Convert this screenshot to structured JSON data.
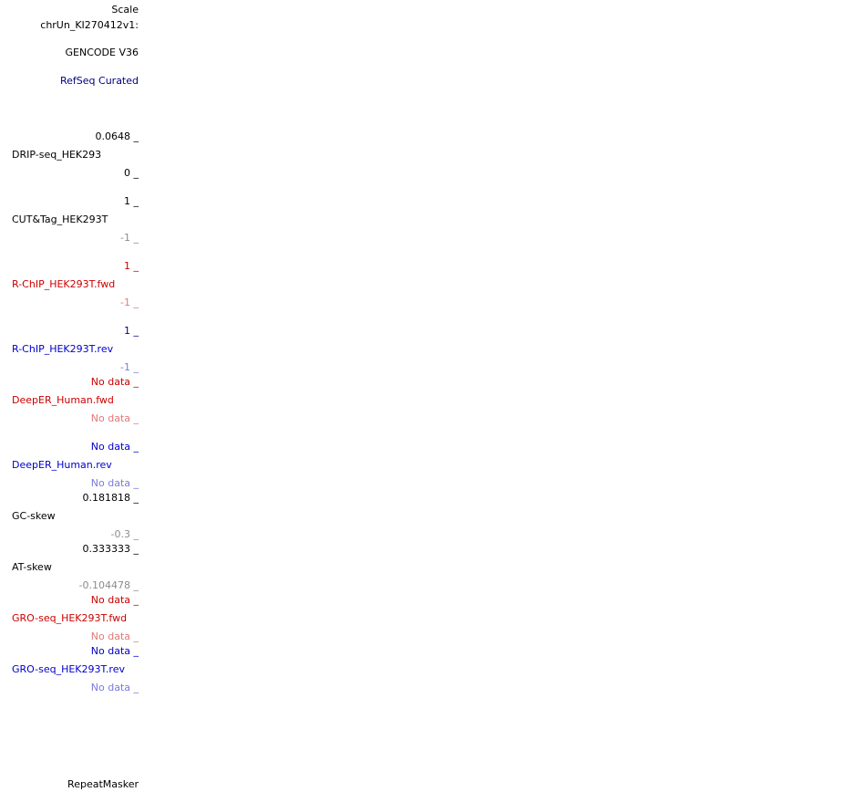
{
  "header": {
    "scale_label": "Scale",
    "chrom_label": "chrUn_KI270412v1:"
  },
  "tracks": {
    "gencode": {
      "name": "GENCODE V36"
    },
    "refseq": {
      "name": "RefSeq Curated"
    },
    "drip": {
      "max": "0.0648 _",
      "name": "DRIP-seq_HEK293",
      "min": "0 _"
    },
    "cuttag": {
      "max": "1 _",
      "name": "CUT&Tag_HEK293T",
      "min": "-1 _"
    },
    "rchip_fwd": {
      "max": "1 _",
      "name": "R-ChIP_HEK293T.fwd",
      "min": "-1 _"
    },
    "rchip_rev": {
      "max": "1 _",
      "name": "R-ChIP_HEK293T.rev",
      "min": "-1 _"
    },
    "deeper_fwd": {
      "max": "No data _",
      "name": "DeepER_Human.fwd",
      "min": "No data _"
    },
    "deeper_rev": {
      "max": "No data _",
      "name": "DeepER_Human.rev",
      "min": "No data _"
    },
    "gc_skew": {
      "max": "0.181818 _",
      "name": "GC-skew",
      "min": "-0.3 _"
    },
    "at_skew": {
      "max": "0.333333 _",
      "name": "AT-skew",
      "min": "-0.104478 _"
    },
    "gro_fwd": {
      "max": "No data _",
      "name": "GRO-seq_HEK293T.fwd",
      "min": "No data _"
    },
    "gro_rev": {
      "max": "No data _",
      "name": "GRO-seq_HEK293T.rev",
      "min": "No data _"
    },
    "repeatmasker": {
      "name": "RepeatMasker"
    }
  },
  "colors": {
    "black": "#000000",
    "navy": "#000080",
    "red": "#cc0000",
    "light_red": "#e07a7a",
    "blue": "#0000cc",
    "light_blue": "#7a7ae0",
    "gray": "#8c8c8c"
  }
}
